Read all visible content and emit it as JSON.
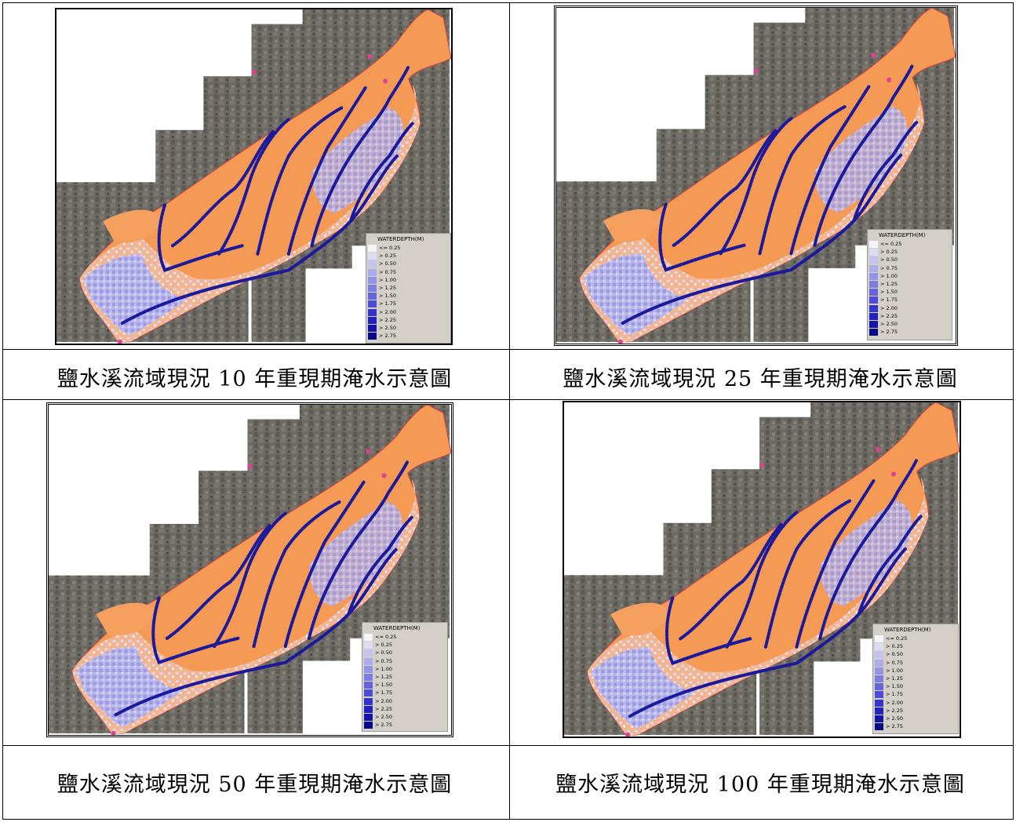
{
  "captions": [
    "鹽水溪流域現況 10 年重現期淹水示意圖",
    "鹽水溪流域現況 25 年重現期淹水示意圖",
    "鹽水溪流域現況 50 年重現期淹水示意圖",
    "鹽水溪流域現況 100 年重現期淹水示意圖"
  ],
  "legend": {
    "title": "WATERDEPTH(M)",
    "items": [
      {
        "label": "<= 0.25",
        "color": "#f4f4fb"
      },
      {
        "label": "> 0.25",
        "color": "#dcdcf5"
      },
      {
        "label": "> 0.50",
        "color": "#c4c4ef"
      },
      {
        "label": "> 0.75",
        "color": "#acaceb"
      },
      {
        "label": "> 1.00",
        "color": "#9494e6"
      },
      {
        "label": "> 1.25",
        "color": "#7c7ce2"
      },
      {
        "label": "> 1.50",
        "color": "#6464de"
      },
      {
        "label": "> 1.75",
        "color": "#4c4cd8"
      },
      {
        "label": "> 2.00",
        "color": "#3434cf"
      },
      {
        "label": "> 2.25",
        "color": "#2222c0"
      },
      {
        "label": "> 2.50",
        "color": "#1414a8"
      },
      {
        "label": "> 2.75",
        "color": "#08088a"
      }
    ]
  },
  "colors": {
    "dry": "#f49a55",
    "shallow": "#f3c0a0",
    "river": "#1a1a9a",
    "satellite": "#6d6a63",
    "boundary": "#d04040"
  }
}
